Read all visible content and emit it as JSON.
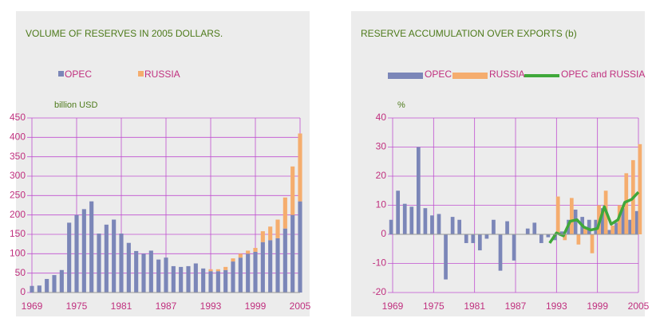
{
  "chart_data": [
    {
      "type": "bar",
      "stacked": true,
      "title": "VOLUME OF RESERVES IN 2005 DOLLARS.",
      "y_label": "billion USD",
      "categories": [
        "1969",
        null,
        null,
        null,
        null,
        null,
        "1975",
        null,
        null,
        null,
        null,
        null,
        "1981",
        null,
        null,
        null,
        null,
        null,
        "1987",
        null,
        null,
        null,
        null,
        null,
        "1993",
        null,
        null,
        null,
        null,
        null,
        "1999",
        null,
        null,
        null,
        null,
        null,
        "2005"
      ],
      "series": [
        {
          "name": "OPEC",
          "color": "#7b86b8",
          "type": "bar",
          "values": [
            17,
            18,
            35,
            45,
            58,
            180,
            200,
            215,
            235,
            152,
            175,
            188,
            152,
            128,
            107,
            100,
            108,
            85,
            90,
            68,
            66,
            68,
            75,
            62,
            55,
            55,
            58,
            80,
            90,
            100,
            105,
            130,
            135,
            140,
            165,
            200,
            235
          ]
        },
        {
          "name": "RUSSIA",
          "color": "#f5ad6e",
          "type": "bar",
          "values": [
            null,
            null,
            null,
            null,
            null,
            null,
            null,
            null,
            null,
            null,
            null,
            null,
            null,
            null,
            null,
            null,
            null,
            null,
            null,
            null,
            null,
            null,
            null,
            null,
            5,
            5,
            8,
            8,
            10,
            8,
            10,
            28,
            35,
            48,
            80,
            125,
            175
          ]
        }
      ],
      "ylim": [
        0,
        450
      ],
      "yticks": [
        0,
        50,
        100,
        150,
        200,
        250,
        300,
        350,
        400,
        450
      ],
      "grid": true
    },
    {
      "type": "bar",
      "stacked": false,
      "title": "RESERVE ACCUMULATION OVER EXPORTS (b)",
      "y_label": "%",
      "categories": [
        "1969",
        null,
        null,
        null,
        null,
        null,
        "1975",
        null,
        null,
        null,
        null,
        null,
        "1981",
        null,
        null,
        null,
        null,
        null,
        "1987",
        null,
        null,
        null,
        null,
        null,
        "1993",
        null,
        null,
        null,
        null,
        null,
        "1999",
        null,
        null,
        null,
        null,
        null,
        "2005"
      ],
      "series": [
        {
          "name": "OPEC",
          "color": "#7b86b8",
          "type": "bar",
          "values": [
            5,
            15,
            10.5,
            9.5,
            30,
            9,
            6.5,
            7,
            -15.5,
            6,
            5,
            -3,
            -3,
            -5.5,
            -1.5,
            5,
            -12.5,
            4.5,
            -9,
            null,
            2,
            4,
            -3,
            -1,
            -2,
            1,
            5,
            8.5,
            6,
            5,
            5,
            9,
            1.5,
            4,
            9,
            5,
            8
          ]
        },
        {
          "name": "RUSSIA",
          "color": "#f5ad6e",
          "type": "bar",
          "values": [
            null,
            null,
            null,
            null,
            null,
            null,
            null,
            null,
            null,
            null,
            null,
            null,
            null,
            null,
            null,
            null,
            null,
            null,
            null,
            null,
            null,
            null,
            null,
            null,
            13,
            -2,
            12.5,
            -3.5,
            2,
            -6.5,
            10,
            15,
            3,
            10,
            21,
            25.5,
            31
          ]
        },
        {
          "name": "OPEC and RUSSIA",
          "color": "#3fa83a",
          "type": "line",
          "values": [
            null,
            null,
            null,
            null,
            null,
            null,
            null,
            null,
            null,
            null,
            null,
            null,
            null,
            null,
            null,
            null,
            null,
            null,
            null,
            null,
            null,
            null,
            null,
            -3,
            0.5,
            -0.5,
            4.5,
            5,
            2.5,
            1.5,
            2,
            9.5,
            3.5,
            5,
            11,
            12,
            14.5
          ]
        }
      ],
      "ylim": [
        -20,
        40
      ],
      "yticks": [
        -20,
        -10,
        0,
        10,
        20,
        30,
        40
      ],
      "grid": true
    }
  ]
}
